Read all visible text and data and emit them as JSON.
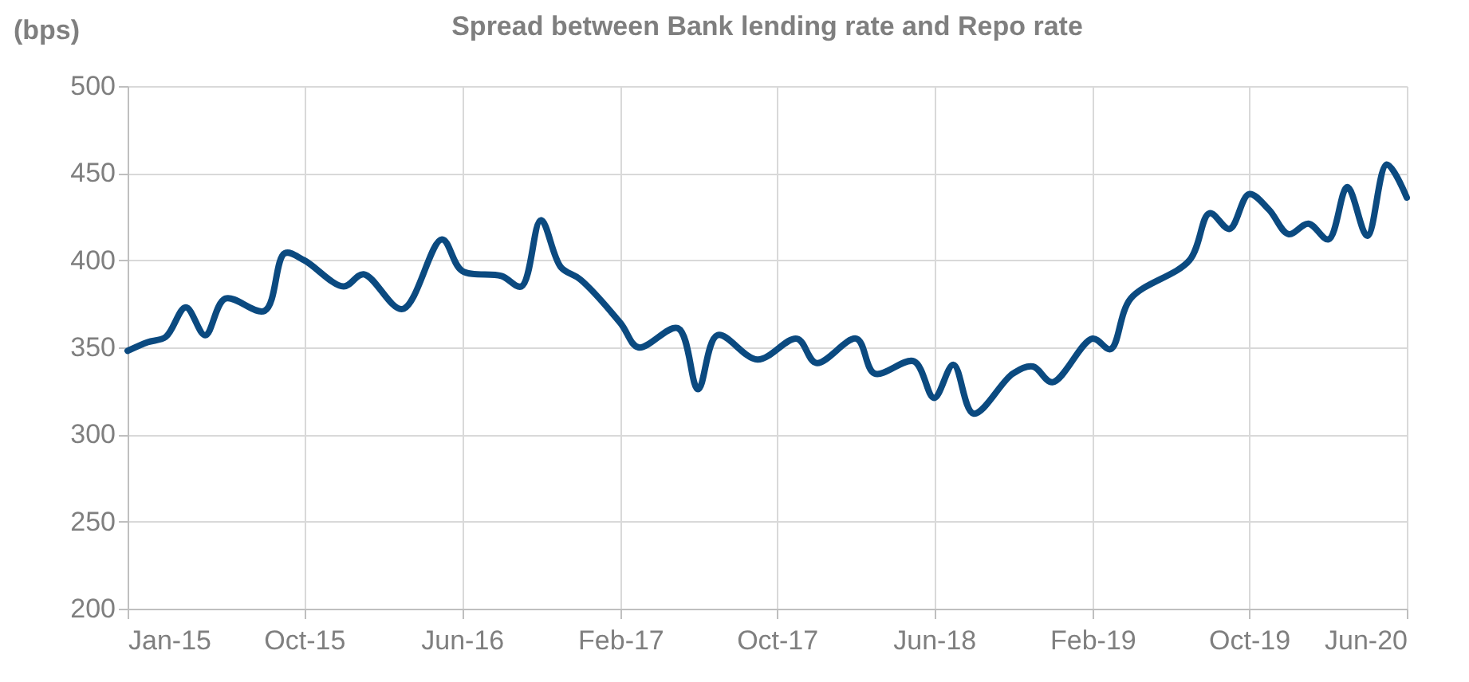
{
  "chart_data": {
    "type": "line",
    "title": "Spread between Bank lending rate and Repo rate",
    "ylabel": "(bps)",
    "x": [
      "2015-01",
      "2015-02",
      "2015-03",
      "2015-04",
      "2015-05",
      "2015-06",
      "2015-08",
      "2015-09",
      "2015-10",
      "2015-12",
      "2016-01",
      "2016-03",
      "2016-05",
      "2016-06",
      "2016-08",
      "2016-09",
      "2016-10",
      "2016-11",
      "2016-12",
      "2017-02",
      "2017-03",
      "2017-05",
      "2017-06",
      "2017-07",
      "2017-09",
      "2017-11",
      "2017-12",
      "2018-02",
      "2018-03",
      "2018-05",
      "2018-06",
      "2018-07",
      "2018-08",
      "2018-10",
      "2018-11",
      "2018-12",
      "2019-02",
      "2019-03",
      "2019-04",
      "2019-07",
      "2019-08",
      "2019-09",
      "2019-10",
      "2019-11",
      "2019-12",
      "2020-01",
      "2020-02",
      "2020-03",
      "2020-04",
      "2020-05",
      "2020-06"
    ],
    "series": [
      {
        "color": "#0b4a80",
        "values": [
          348,
          353,
          356,
          373,
          357,
          378,
          371,
          404,
          400,
          385,
          392,
          372,
          412,
          394,
          391,
          385,
          423,
          396,
          389,
          364,
          350,
          361,
          326,
          357,
          343,
          355,
          341,
          355,
          335,
          342,
          321,
          340,
          312,
          335,
          339,
          330,
          355,
          349,
          378,
          400,
          427,
          418,
          438,
          429,
          415,
          421,
          412,
          442,
          414,
          455,
          436
        ]
      }
    ],
    "ylim": [
      200,
      500
    ],
    "yticks": [
      200,
      250,
      300,
      350,
      400,
      450,
      500
    ],
    "xlim": [
      "2015-01",
      "2020-06"
    ],
    "xticks": [
      {
        "value": "2015-01",
        "label": "Jan-15"
      },
      {
        "value": "2015-10",
        "label": "Oct-15"
      },
      {
        "value": "2016-06",
        "label": "Jun-16"
      },
      {
        "value": "2017-02",
        "label": "Feb-17"
      },
      {
        "value": "2017-10",
        "label": "Oct-17"
      },
      {
        "value": "2018-06",
        "label": "Jun-18"
      },
      {
        "value": "2019-02",
        "label": "Feb-19"
      },
      {
        "value": "2019-10",
        "label": "Oct-19"
      },
      {
        "value": "2020-06",
        "label": "Jun-20"
      }
    ],
    "grid": true,
    "marker": "none",
    "line_style": "solid"
  }
}
